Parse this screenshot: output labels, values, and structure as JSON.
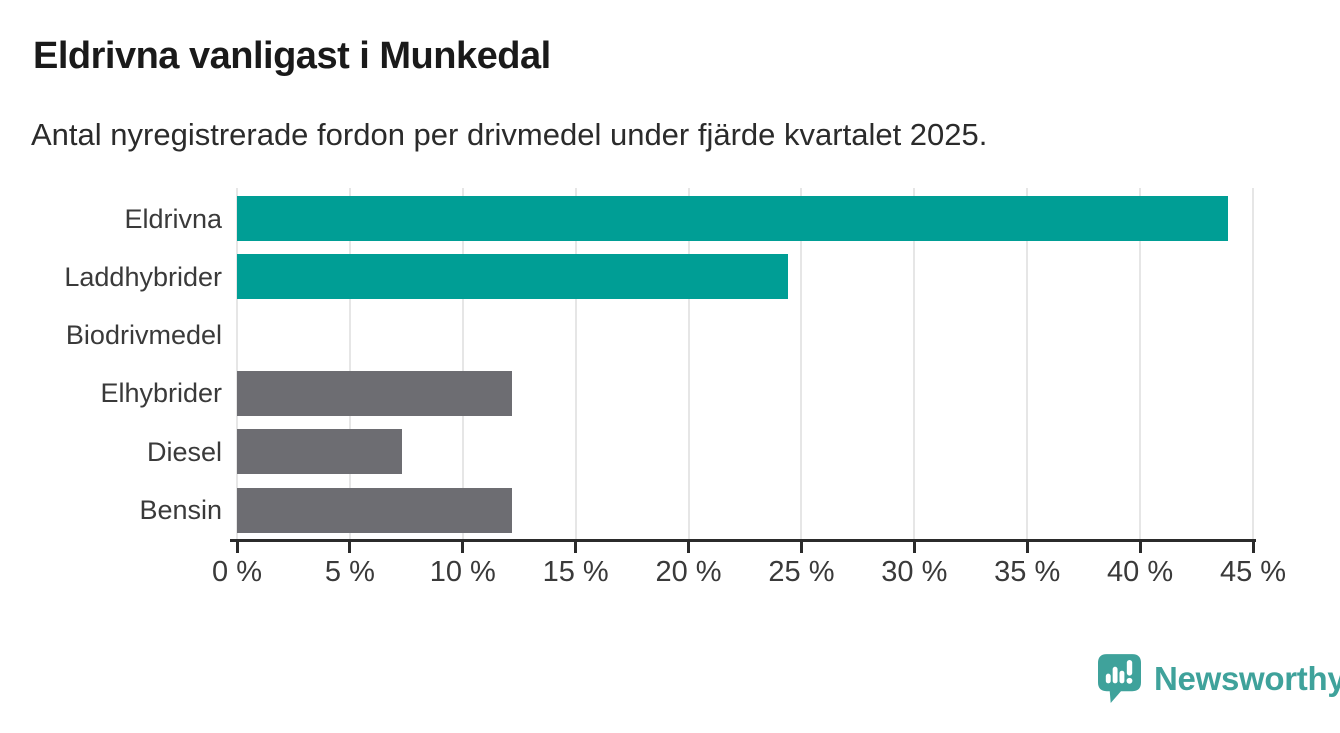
{
  "header": {
    "title": "Eldrivna vanligast i Munkedal",
    "subtitle": "Antal nyregistrerade fordon per drivmedel under fjärde kvartalet 2025."
  },
  "chart_data": {
    "type": "bar",
    "orientation": "horizontal",
    "title": "Eldrivna vanligast i Munkedal",
    "subtitle": "Antal nyregistrerade fordon per drivmedel under fjärde kvartalet 2025.",
    "categories": [
      "Eldrivna",
      "Laddhybrider",
      "Biodrivmedel",
      "Elhybrider",
      "Diesel",
      "Bensin"
    ],
    "values": [
      43.9,
      24.4,
      0,
      12.2,
      7.3,
      12.2
    ],
    "value_unit": "%",
    "bar_colors": [
      "#009e95",
      "#009e95",
      "#009e95",
      "#6d6d72",
      "#6d6d72",
      "#6d6d72"
    ],
    "xlim": [
      0,
      45
    ],
    "x_ticks": [
      0,
      5,
      10,
      15,
      20,
      25,
      30,
      35,
      40,
      45
    ],
    "x_tick_labels": [
      "0 %",
      "5 %",
      "10 %",
      "15 %",
      "20 %",
      "25 %",
      "30 %",
      "35 %",
      "40 %",
      "45 %"
    ],
    "grid": true,
    "legend": false
  },
  "colors": {
    "accent_teal": "#009e95",
    "neutral_gray": "#6d6d72",
    "grid": "#e6e6e6",
    "axis": "#2b2b2b",
    "title_text": "#1a1a1a",
    "subtitle_text": "#2b2b2b",
    "label_text": "#3a3a3a",
    "logo_teal": "#3fa29b",
    "background": "#ffffff"
  },
  "footer": {
    "brand_name": "Newsworthy"
  }
}
